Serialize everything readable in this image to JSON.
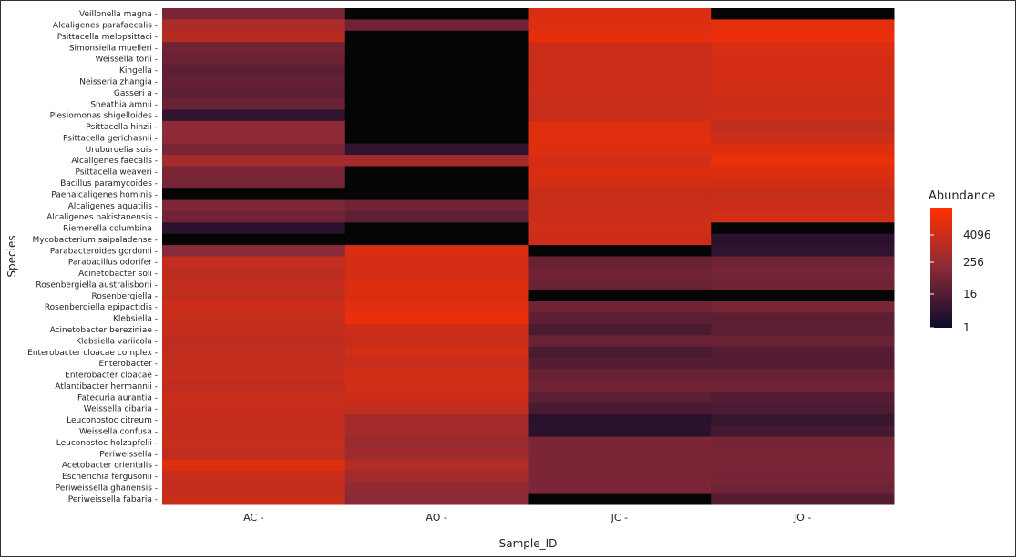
{
  "chart_data": {
    "type": "heatmap",
    "title": "",
    "xlabel": "Sample_ID",
    "ylabel": "Species",
    "x_categories": [
      "AC -",
      "AO -",
      "JC -",
      "JO -"
    ],
    "y_categories": [
      "Veillonella magna -",
      "Alcaligenes parafaecalis -",
      "Psittacella melopsittaci -",
      "Simonsiella muelleri -",
      "Weissella torii -",
      "Kingella -",
      "Neisseria zhangia -",
      "Gasseri a -",
      "Sneathia amnii -",
      "Plesiomonas shigelloides -",
      "Psittacella hinzii -",
      "Psittacella gerichasnii -",
      "Uruburuelia suis -",
      "Alcaligenes faecalis -",
      "Psittacella weaveri -",
      "Bacillus paramycoides -",
      "Paenalcaligenes hominis -",
      "Alcaligenes aquatilis -",
      "Alcaligenes pakistanensis -",
      "Riemerella columbina -",
      "Mycobacterium saipaladense -",
      "Parabacteroides gordonii -",
      "Parabacillus odorifer -",
      "Acinetobacter soli -",
      "Rosenbergiella australisborii -",
      "Rosenbergiella -",
      "Rosenbergiella epipactidis -",
      "Klebsiella -",
      "Acinetobacter bereziniae -",
      "Klebsiella variicola -",
      "Enterobacter cloacae complex -",
      "Enterobacter -",
      "Enterobacter cloacae -",
      "Atlantibacter hermannii -",
      "Fatecuria aurantia -",
      "Weissella cibaria -",
      "Leuconostoc citreum -",
      "Weissella confusa -",
      "Leuconostoc holzapfelii -",
      "Periweissella -",
      "Acetobacter orientalis -",
      "Escherichia fergusonii -",
      "Periweissella ghanensis -",
      "Periweissella fabaria -"
    ],
    "values": [
      [
        60,
        1,
        2500,
        1
      ],
      [
        400,
        40,
        3000,
        4096
      ],
      [
        600,
        1,
        4096,
        5000
      ],
      [
        40,
        1,
        1500,
        2500
      ],
      [
        30,
        1,
        1300,
        2000
      ],
      [
        20,
        1,
        1500,
        2000
      ],
      [
        25,
        1,
        1300,
        1800
      ],
      [
        20,
        1,
        1500,
        2000
      ],
      [
        30,
        1,
        1300,
        1500
      ],
      [
        4,
        1,
        1200,
        1800
      ],
      [
        120,
        1,
        3000,
        900
      ],
      [
        130,
        1,
        3500,
        1500
      ],
      [
        60,
        4,
        3000,
        3000
      ],
      [
        300,
        300,
        2000,
        5000
      ],
      [
        60,
        1,
        2500,
        3000
      ],
      [
        50,
        1,
        2000,
        2000
      ],
      [
        1,
        1,
        1300,
        1200
      ],
      [
        70,
        40,
        1300,
        1500
      ],
      [
        40,
        20,
        1500,
        1800
      ],
      [
        3,
        1,
        1800,
        1
      ],
      [
        1,
        1,
        1500,
        3
      ],
      [
        100,
        2500,
        1,
        4
      ],
      [
        1000,
        2000,
        30,
        40
      ],
      [
        800,
        2000,
        40,
        50
      ],
      [
        1000,
        2500,
        30,
        40
      ],
      [
        900,
        2800,
        1,
        1
      ],
      [
        1500,
        3500,
        40,
        60
      ],
      [
        1200,
        5000,
        20,
        20
      ],
      [
        1000,
        1500,
        10,
        20
      ],
      [
        800,
        1300,
        30,
        30
      ],
      [
        900,
        1800,
        10,
        15
      ],
      [
        1000,
        1200,
        15,
        15
      ],
      [
        1200,
        2000,
        30,
        30
      ],
      [
        900,
        1800,
        40,
        40
      ],
      [
        1300,
        1500,
        20,
        15
      ],
      [
        1200,
        1000,
        10,
        12
      ],
      [
        1000,
        300,
        3,
        5
      ],
      [
        1000,
        300,
        3,
        8
      ],
      [
        1200,
        200,
        60,
        50
      ],
      [
        900,
        250,
        60,
        60
      ],
      [
        3000,
        500,
        60,
        60
      ],
      [
        1200,
        300,
        60,
        50
      ],
      [
        1000,
        150,
        60,
        40
      ],
      [
        1300,
        100,
        1,
        15
      ]
    ],
    "color_scale": {
      "type": "log2",
      "low": "#0c0b2b",
      "mid": "#8a2a38",
      "high": "#ff3000",
      "zero_color": "#050505",
      "breaks": [
        1,
        16,
        256,
        4096
      ]
    },
    "legend": {
      "title": "Abundance",
      "labels": [
        "4096",
        "256",
        "16",
        "1"
      ],
      "position": "right"
    },
    "grid": false
  }
}
